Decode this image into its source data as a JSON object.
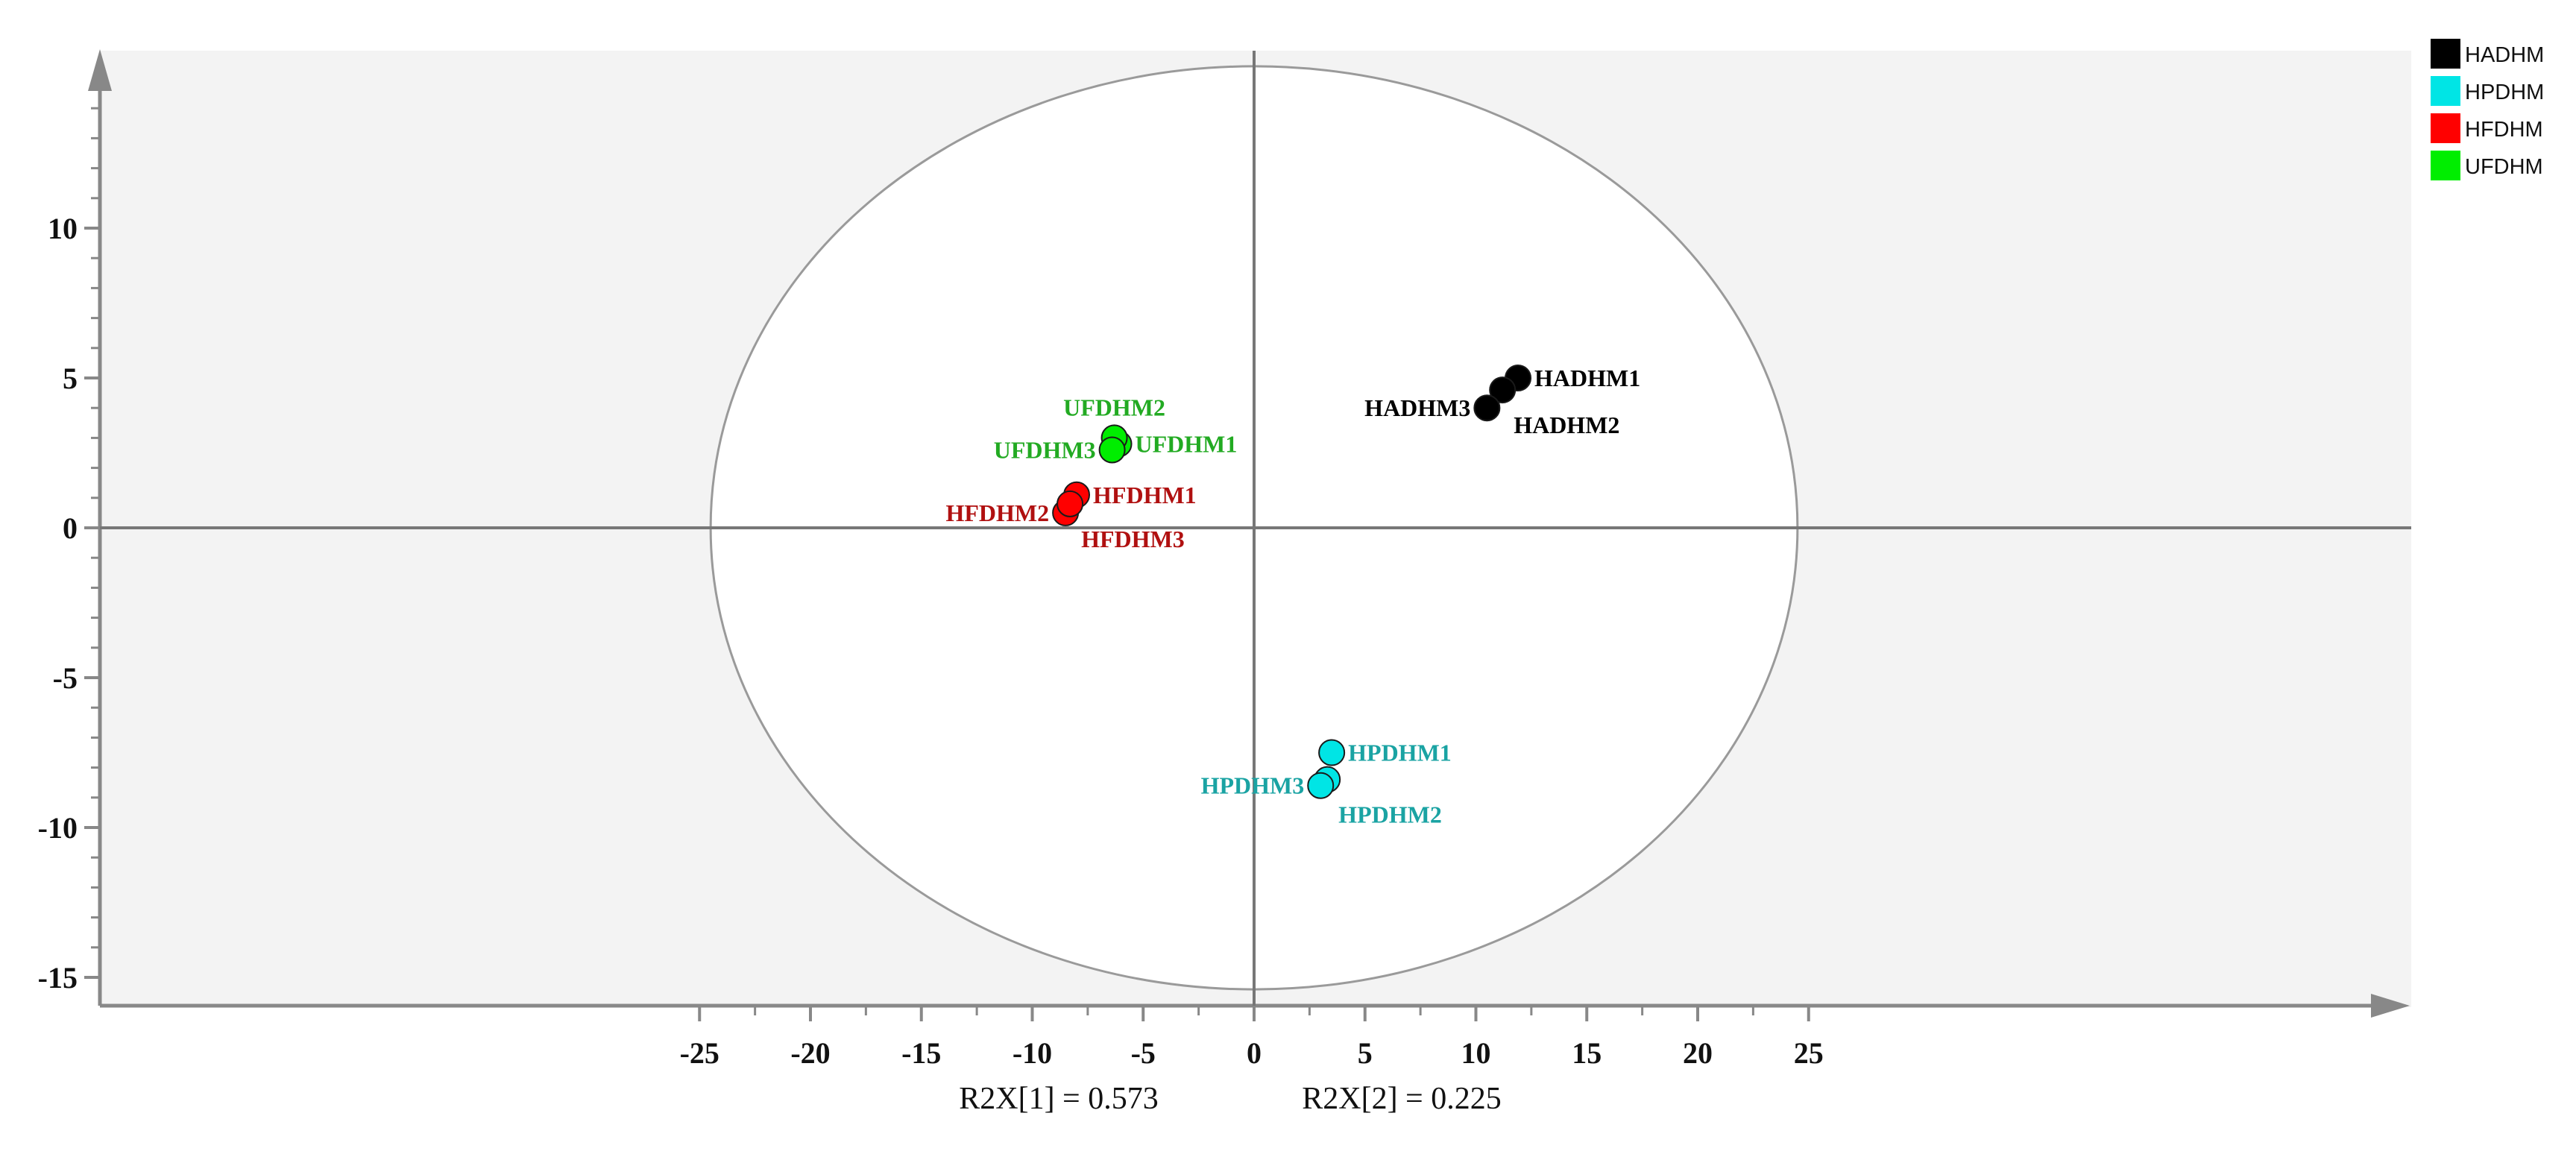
{
  "chart_data": {
    "type": "scatter",
    "title": "",
    "xlim": [
      -26,
      26
    ],
    "ylim": [
      -16,
      16
    ],
    "x_ticks": [
      -25,
      -20,
      -15,
      -10,
      -5,
      0,
      5,
      10,
      15,
      20,
      25
    ],
    "y_ticks": [
      10,
      5,
      0,
      -5,
      -10,
      -15
    ],
    "x_tick_labels": [
      "-25",
      "-20",
      "-15",
      "-10",
      "-5",
      "0",
      "5",
      "10",
      "15",
      "20",
      "25"
    ],
    "y_tick_labels": [
      "10",
      "5",
      "0",
      "-5",
      "-10",
      "-15"
    ],
    "axis_labels": {
      "x": "R2X[1] = 0.573",
      "y": "R2X[2] = 0.225"
    },
    "hotelling_ellipse": {
      "rx": 24.5,
      "ry": 15.4
    },
    "grid": false,
    "legend_position": "top-right",
    "legend": [
      {
        "name": "HADHM",
        "color": "#000000"
      },
      {
        "name": "HPDHM",
        "color": "#00e5e5"
      },
      {
        "name": "HFDHM",
        "color": "#ff0000"
      },
      {
        "name": "UFDHM",
        "color": "#00ee00"
      }
    ],
    "series": [
      {
        "name": "HADHM",
        "color": "#000000",
        "label_color": "#000000",
        "points": [
          {
            "label": "HADHM1",
            "x": 11.9,
            "y": 5.0,
            "label_pos": "right"
          },
          {
            "label": "HADHM2",
            "x": 11.2,
            "y": 4.6,
            "label_pos": "below-right"
          },
          {
            "label": "HADHM3",
            "x": 10.5,
            "y": 4.0,
            "label_pos": "left"
          }
        ]
      },
      {
        "name": "HPDHM",
        "color": "#00e5e5",
        "label_color": "#1aa3a3",
        "points": [
          {
            "label": "HPDHM1",
            "x": 3.5,
            "y": -7.5,
            "label_pos": "right"
          },
          {
            "label": "HPDHM2",
            "x": 3.3,
            "y": -8.4,
            "label_pos": "below-right"
          },
          {
            "label": "HPDHM3",
            "x": 3.0,
            "y": -8.6,
            "label_pos": "left"
          }
        ]
      },
      {
        "name": "HFDHM",
        "color": "#ff0000",
        "label_color": "#b01010",
        "points": [
          {
            "label": "HFDHM1",
            "x": -8.0,
            "y": 1.1,
            "label_pos": "right"
          },
          {
            "label": "HFDHM2",
            "x": -8.5,
            "y": 0.5,
            "label_pos": "left"
          },
          {
            "label": "HFDHM3",
            "x": -8.3,
            "y": 0.8,
            "label_pos": "below-right"
          }
        ]
      },
      {
        "name": "UFDHM",
        "color": "#00ee00",
        "label_color": "#22aa22",
        "points": [
          {
            "label": "UFDHM1",
            "x": -6.1,
            "y": 2.8,
            "label_pos": "right"
          },
          {
            "label": "UFDHM2",
            "x": -6.3,
            "y": 3.0,
            "label_pos": "above"
          },
          {
            "label": "UFDHM3",
            "x": -6.4,
            "y": 2.6,
            "label_pos": "left"
          }
        ]
      }
    ]
  }
}
